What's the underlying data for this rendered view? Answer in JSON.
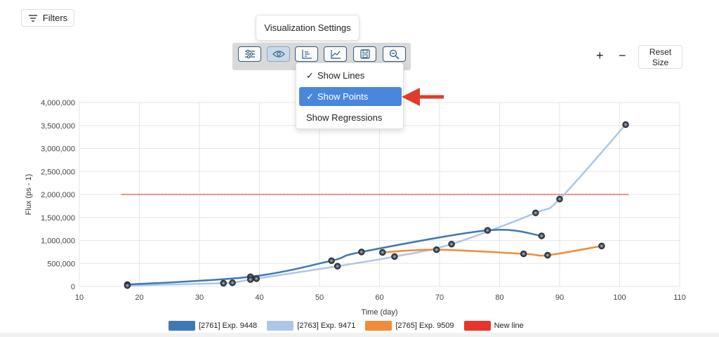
{
  "toolbar": {
    "filters_label": "Filters",
    "tooltip": "Visualization Settings",
    "buttons": [
      {
        "icon": "sliders-icon"
      },
      {
        "icon": "eye-icon"
      },
      {
        "icon": "bar-axis-icon"
      },
      {
        "icon": "line-chart-icon"
      },
      {
        "icon": "save-icon"
      },
      {
        "icon": "zoom-out-icon"
      }
    ],
    "zoom_in": "+",
    "zoom_out": "−",
    "reset_line1": "Reset",
    "reset_line2": "Size"
  },
  "menu": {
    "items": [
      {
        "label": "Show Lines",
        "checked": true,
        "check": "✓"
      },
      {
        "label": "Show Points",
        "checked": true,
        "check": "✓"
      },
      {
        "label": "Show Regressions",
        "checked": false,
        "check": ""
      }
    ]
  },
  "chart_data": {
    "type": "line",
    "xlabel": "Time (day)",
    "ylabel": "Flux (ps - 1)",
    "xlim": [
      10,
      110
    ],
    "ylim": [
      0,
      4000000
    ],
    "xticks": [
      10,
      20,
      30,
      40,
      50,
      60,
      70,
      80,
      90,
      100,
      110
    ],
    "yticks": [
      0,
      500000,
      1000000,
      1500000,
      2000000,
      2500000,
      3000000,
      3500000,
      4000000
    ],
    "ytick_labels": [
      "0",
      "500,000",
      "1,000,000",
      "1,500,000",
      "2,000,000",
      "2,500,000",
      "3,000,000",
      "3,500,000",
      "4,000,000"
    ],
    "grid": true,
    "legend_position": "bottom",
    "series": [
      {
        "name": "[2761] Exp. 9448",
        "color": "#3f78b5",
        "x": [
          18,
          38.5,
          52,
          57,
          78,
          87
        ],
        "y": [
          40000,
          210000,
          560000,
          750000,
          1220000,
          1100000
        ]
      },
      {
        "name": "[2763] Exp. 9471",
        "color": "#aec6e8",
        "x": [
          18,
          34,
          35.5,
          38.5,
          39.5,
          53,
          62.5,
          72,
          86,
          90,
          101
        ],
        "y": [
          20000,
          70000,
          80000,
          150000,
          170000,
          440000,
          650000,
          920000,
          1600000,
          1900000,
          3520000
        ]
      },
      {
        "name": "[2765] Exp. 9509",
        "color": "#f08b3a",
        "x": [
          60.5,
          69.5,
          84,
          88,
          97
        ],
        "y": [
          740000,
          800000,
          710000,
          680000,
          880000
        ]
      },
      {
        "name": "New line",
        "color": "#e8352b",
        "x": [
          17,
          101.5
        ],
        "y": [
          2000000,
          2000000
        ]
      }
    ]
  },
  "annotation": {
    "color": "#e23b2b"
  },
  "colors": {
    "grid": "#e6e6e6",
    "marker_fill": "#4a5563",
    "marker_stroke": "#2b2f36"
  }
}
